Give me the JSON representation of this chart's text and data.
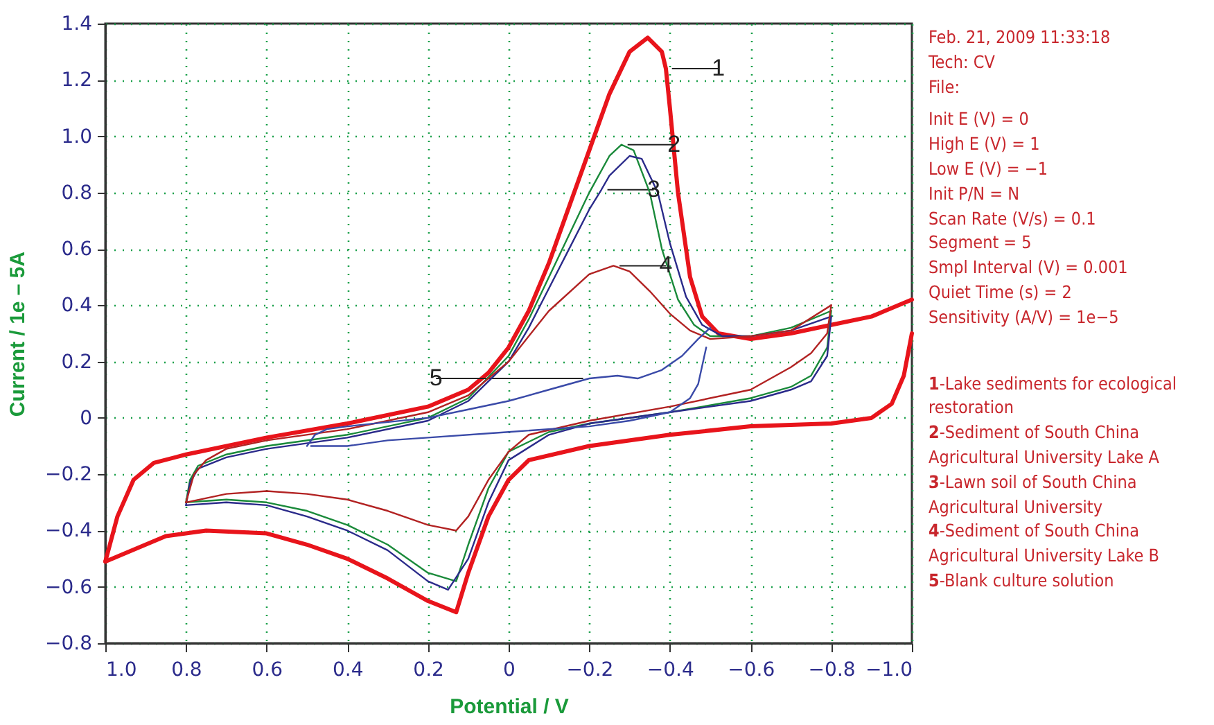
{
  "chart_data": {
    "type": "line",
    "xlabel": "Potential / V",
    "ylabel": "Current / 1e – 5A",
    "xlim": [
      1,
      -1
    ],
    "xticks": [
      {
        "value": 1,
        "label": "1.0"
      },
      0.8,
      0.6,
      0.4,
      0.2,
      0,
      {
        "value": -0.2,
        "label": "−0.2"
      },
      {
        "value": -0.4,
        "label": "−0.4"
      },
      {
        "value": -0.6,
        "label": "−0.6"
      },
      {
        "value": -0.8,
        "label": "−0.8"
      },
      {
        "value": -1,
        "label": "−1.0"
      }
    ],
    "ylim": [
      -0.8,
      1.4
    ],
    "yticks": [
      {
        "value": -0.8,
        "label": "−0.8"
      },
      {
        "value": -0.6,
        "label": "−0.6"
      },
      {
        "value": -0.4,
        "label": "−0.4"
      },
      {
        "value": -0.2,
        "label": "−0.2"
      },
      0,
      0.2,
      0.4,
      0.6,
      0.8,
      {
        "value": 1,
        "label": "1.0"
      },
      1.2,
      1.4
    ],
    "grid": true,
    "series": [
      {
        "color": "#e8141b",
        "x": [
          1.0,
          0.97,
          0.93,
          0.88,
          0.8,
          0.6,
          0.4,
          0.2,
          0.1,
          0.05,
          0,
          -0.05,
          -0.1,
          -0.15,
          -0.2,
          -0.25,
          -0.3,
          -0.345,
          -0.38,
          -0.39,
          -0.4,
          -0.42,
          -0.45,
          -0.48,
          -0.52,
          -0.6,
          -0.7,
          -0.8,
          -0.9,
          -1.0
        ],
        "values": [
          -0.51,
          -0.35,
          -0.22,
          -0.16,
          -0.13,
          -0.07,
          -0.02,
          0.04,
          0.1,
          0.16,
          0.25,
          0.38,
          0.55,
          0.75,
          0.95,
          1.15,
          1.3,
          1.35,
          1.3,
          1.24,
          1.1,
          0.8,
          0.5,
          0.36,
          0.3,
          0.28,
          0.3,
          0.33,
          0.36,
          0.42
        ]
      },
      {
        "color": "#e8141b",
        "x": [
          -1.0,
          -0.98,
          -0.95,
          -0.9,
          -0.8,
          -0.6,
          -0.4,
          -0.2,
          -0.05,
          0,
          0.05,
          0.1,
          0.13,
          0.2,
          0.3,
          0.4,
          0.5,
          0.6,
          0.75,
          0.85,
          0.95,
          1.0
        ],
        "values": [
          0.3,
          0.15,
          0.05,
          0,
          -0.02,
          -0.03,
          -0.06,
          -0.1,
          -0.15,
          -0.22,
          -0.35,
          -0.55,
          -0.69,
          -0.65,
          -0.57,
          -0.5,
          -0.45,
          -0.41,
          -0.4,
          -0.42,
          -0.48,
          -0.51
        ]
      },
      {
        "color": "#1a8a3a",
        "x": [
          0.8,
          0.79,
          0.77,
          0.7,
          0.6,
          0.4,
          0.2,
          0.1,
          0,
          -0.05,
          -0.1,
          -0.15,
          -0.2,
          -0.25,
          -0.28,
          -0.31,
          -0.35,
          -0.38,
          -0.42,
          -0.46,
          -0.5,
          -0.6,
          -0.7,
          -0.8
        ],
        "values": [
          -0.3,
          -0.22,
          -0.17,
          -0.13,
          -0.1,
          -0.06,
          0,
          0.07,
          0.22,
          0.35,
          0.5,
          0.65,
          0.8,
          0.93,
          0.97,
          0.95,
          0.8,
          0.6,
          0.42,
          0.33,
          0.29,
          0.29,
          0.32,
          0.38
        ]
      },
      {
        "color": "#1a8a3a",
        "x": [
          -0.8,
          -0.79,
          -0.75,
          -0.7,
          -0.6,
          -0.4,
          -0.2,
          -0.1,
          0,
          0.05,
          0.1,
          0.13,
          0.2,
          0.3,
          0.4,
          0.5,
          0.6,
          0.7,
          0.8
        ],
        "values": [
          0.38,
          0.25,
          0.15,
          0.11,
          0.07,
          0.02,
          -0.02,
          -0.05,
          -0.12,
          -0.25,
          -0.45,
          -0.58,
          -0.55,
          -0.45,
          -0.38,
          -0.33,
          -0.3,
          -0.29,
          -0.3
        ]
      },
      {
        "color": "#2a2a8a",
        "x": [
          0.8,
          0.79,
          0.77,
          0.7,
          0.6,
          0.4,
          0.2,
          0.1,
          0,
          -0.05,
          -0.1,
          -0.15,
          -0.2,
          -0.23,
          -0.25,
          -0.3,
          -0.33,
          -0.37,
          -0.4,
          -0.44,
          -0.48,
          -0.53,
          -0.6,
          -0.7,
          -0.8
        ],
        "values": [
          -0.31,
          -0.23,
          -0.18,
          -0.14,
          -0.11,
          -0.07,
          -0.01,
          0.06,
          0.2,
          0.32,
          0.46,
          0.6,
          0.74,
          0.81,
          0.86,
          0.93,
          0.92,
          0.8,
          0.62,
          0.43,
          0.33,
          0.29,
          0.29,
          0.31,
          0.36
        ]
      },
      {
        "color": "#2a2a8a",
        "x": [
          -0.8,
          -0.79,
          -0.75,
          -0.7,
          -0.6,
          -0.4,
          -0.2,
          -0.1,
          0,
          0.05,
          0.1,
          0.15,
          0.2,
          0.3,
          0.4,
          0.5,
          0.6,
          0.7,
          0.8
        ],
        "values": [
          0.36,
          0.22,
          0.13,
          0.1,
          0.06,
          0.02,
          -0.02,
          -0.06,
          -0.15,
          -0.3,
          -0.5,
          -0.61,
          -0.58,
          -0.47,
          -0.4,
          -0.35,
          -0.31,
          -0.3,
          -0.31
        ]
      },
      {
        "color": "#b22222",
        "x": [
          0.8,
          0.78,
          0.75,
          0.7,
          0.6,
          0.4,
          0.2,
          0.1,
          0,
          -0.1,
          -0.2,
          -0.26,
          -0.3,
          -0.35,
          -0.4,
          -0.45,
          -0.5,
          -0.6,
          -0.7,
          -0.8
        ],
        "values": [
          -0.3,
          -0.2,
          -0.15,
          -0.11,
          -0.08,
          -0.04,
          0.02,
          0.08,
          0.2,
          0.38,
          0.51,
          0.54,
          0.52,
          0.45,
          0.37,
          0.31,
          0.28,
          0.29,
          0.31,
          0.4
        ]
      },
      {
        "color": "#b22222",
        "x": [
          -0.8,
          -0.79,
          -0.75,
          -0.7,
          -0.6,
          -0.4,
          -0.2,
          -0.05,
          0,
          0.05,
          0.1,
          0.13,
          0.2,
          0.3,
          0.4,
          0.5,
          0.6,
          0.7,
          0.8
        ],
        "values": [
          0.4,
          0.3,
          0.23,
          0.18,
          0.1,
          0.04,
          -0.01,
          -0.06,
          -0.12,
          -0.22,
          -0.35,
          -0.4,
          -0.38,
          -0.33,
          -0.29,
          -0.27,
          -0.26,
          -0.27,
          -0.3
        ]
      },
      {
        "color": "#3a4aa8",
        "x": [
          0.5,
          0.48,
          0.45,
          0.4,
          0.2,
          0.1,
          0,
          -0.1,
          -0.2,
          -0.27,
          -0.32,
          -0.38,
          -0.43,
          -0.47,
          -0.5
        ],
        "values": [
          -0.1,
          -0.06,
          -0.04,
          -0.03,
          0,
          0.03,
          0.06,
          0.1,
          0.14,
          0.15,
          0.14,
          0.17,
          0.22,
          0.28,
          0.32
        ]
      },
      {
        "color": "#3a4aa8",
        "x": [
          -0.49,
          -0.47,
          -0.45,
          -0.4,
          -0.3,
          -0.2,
          0,
          0.2,
          0.3,
          0.4,
          0.49
        ],
        "values": [
          0.25,
          0.12,
          0.07,
          0.02,
          -0.01,
          -0.03,
          -0.05,
          -0.07,
          -0.08,
          -0.1,
          -0.1
        ]
      }
    ],
    "annotations": [
      {
        "text": "1",
        "x": -0.39,
        "y": 1.24
      },
      {
        "text": "2",
        "x": -0.28,
        "y": 0.97
      },
      {
        "text": "3",
        "x": -0.23,
        "y": 0.81
      },
      {
        "text": "4",
        "x": -0.26,
        "y": 0.54
      },
      {
        "text": "5",
        "x": -0.2,
        "y": 0.14
      },
      "Feb. 21, 2009  11:33:18",
      "Tech: CV",
      "File:",
      "Init E (V) = 0",
      "High E (V) = 1",
      "Low E (V) = −1",
      "Init P/N = N",
      "Scan Rate (V/s) = 0.1",
      "Segment = 5",
      "Smpl Interval (V) = 0.001",
      "Quiet Time (s) = 2",
      "Sensitivity (A/V) = 1e−5",
      "1-Lake sediments for ecological restoration",
      "2-Sediment of South China Agricultural University Lake A",
      "3-Lawn soil of South China Agricultural University",
      "4-Sediment of South China Agricultural University Lake B",
      "5-Blank culture solution"
    ]
  }
}
